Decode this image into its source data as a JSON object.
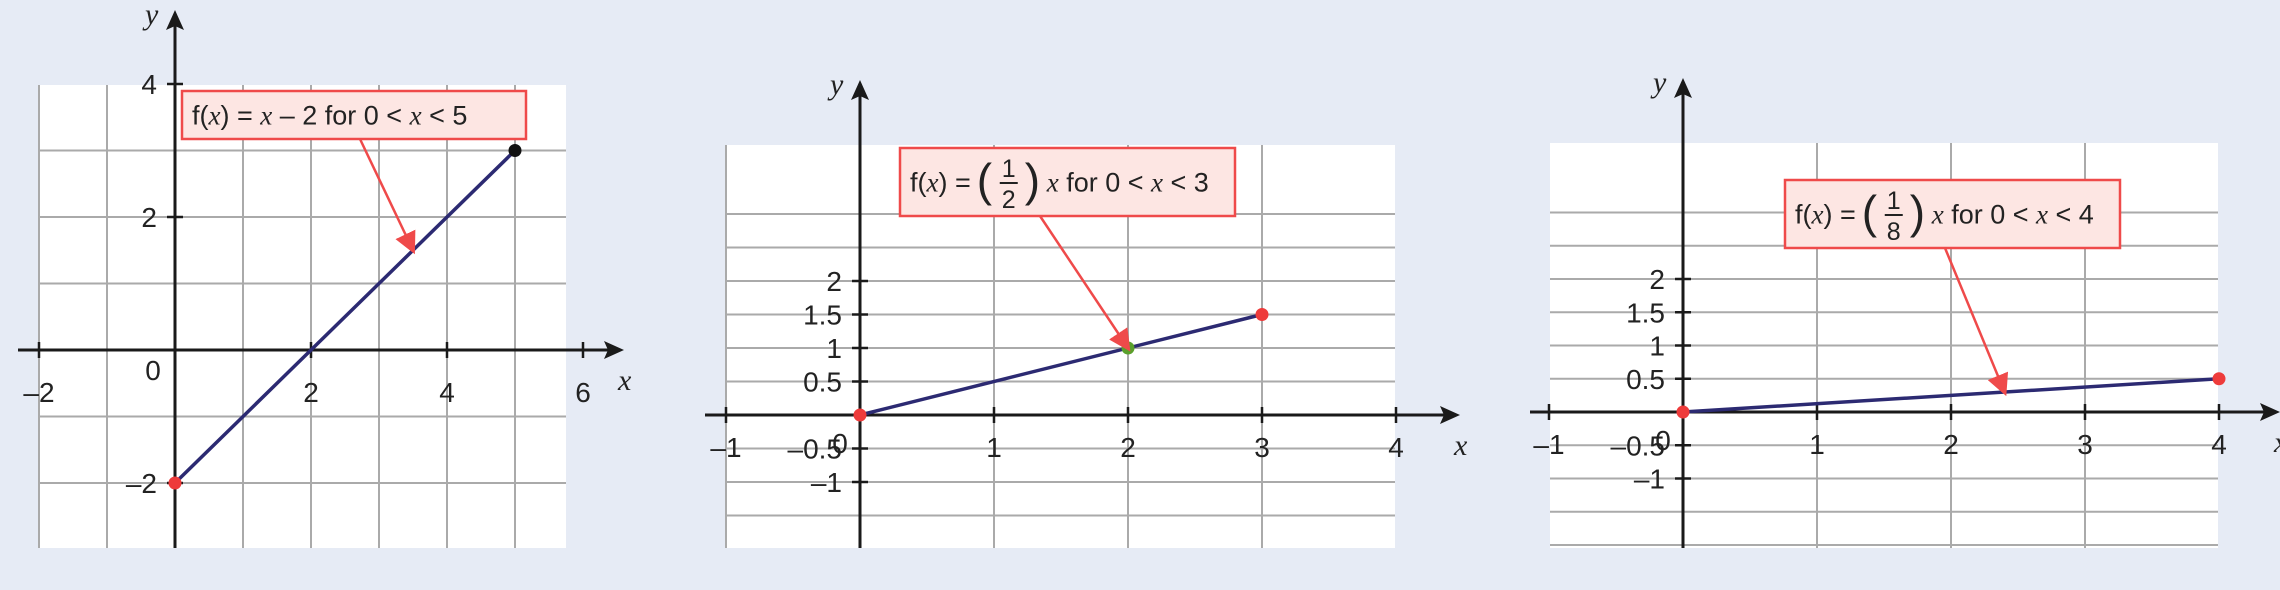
{
  "colors": {
    "background": "#e6ebf5",
    "plot_bg": "#ffffff",
    "grid": "#aaaaaa",
    "axis": "#1a1a1a",
    "line": "#2c2a72",
    "annotation_fill": "#fde6e3",
    "annotation_border": "#ef4a4a",
    "arrow": "#ef4a4a",
    "endpoint_red": "#ee3b3b",
    "endpoint_black": "#111111",
    "endpoint_green": "#5aa02c"
  },
  "chart_data": [
    {
      "type": "line",
      "xlabel": "x",
      "ylabel": "y",
      "origin_label": "0",
      "xlim": [
        -2,
        6
      ],
      "ylim": [
        -3,
        4
      ],
      "x_ticks": [
        -2,
        2,
        4,
        6
      ],
      "x_tick_labels": [
        "–2",
        "2",
        "4",
        "6"
      ],
      "y_ticks": [
        -2,
        2,
        4
      ],
      "y_tick_labels": [
        "–2",
        "2",
        "4"
      ],
      "grid": true,
      "series": [
        {
          "x": [
            0,
            5
          ],
          "y": [
            -2,
            3
          ]
        }
      ],
      "points": [
        {
          "x": 0,
          "y": -2,
          "color": "#ee3b3b"
        },
        {
          "x": 5,
          "y": 3,
          "color": "#111111"
        }
      ],
      "annotation": {
        "parts": [
          "f(",
          "x",
          ") = ",
          "x",
          " – 2 for 0 < ",
          "x",
          " < 5"
        ],
        "arrow_to": {
          "x": 3.5,
          "y": 1.5
        }
      }
    },
    {
      "type": "line",
      "xlabel": "x",
      "ylabel": "y",
      "origin_label": "0",
      "xlim": [
        -1,
        4
      ],
      "ylim": [
        -1,
        2
      ],
      "x_ticks": [
        -1,
        1,
        2,
        3,
        4
      ],
      "x_tick_labels": [
        "–1",
        "1",
        "2",
        "3",
        "4"
      ],
      "y_ticks": [
        -1,
        -0.5,
        0.5,
        1,
        1.5,
        2
      ],
      "y_tick_labels": [
        "–1",
        "–0.5",
        "0.5",
        "1",
        "1.5",
        "2"
      ],
      "grid": true,
      "series": [
        {
          "x": [
            0,
            3
          ],
          "y": [
            0,
            1.5
          ]
        }
      ],
      "points": [
        {
          "x": 0,
          "y": 0,
          "color": "#ee3b3b"
        },
        {
          "x": 3,
          "y": 1.5,
          "color": "#ee3b3b"
        },
        {
          "x": 2,
          "y": 1,
          "color": "#5aa02c"
        }
      ],
      "annotation": {
        "prefix": [
          "f(",
          "x",
          ") = "
        ],
        "fraction": {
          "numerator": "1",
          "denominator": "2"
        },
        "suffix": [
          "x",
          " for 0 < ",
          "x",
          " < 3"
        ],
        "arrow_to": {
          "x": 2,
          "y": 1
        }
      }
    },
    {
      "type": "line",
      "xlabel": "x",
      "ylabel": "y",
      "origin_label": "0",
      "xlim": [
        -1,
        4
      ],
      "ylim": [
        -1,
        2
      ],
      "x_ticks": [
        -1,
        1,
        2,
        3,
        4
      ],
      "x_tick_labels": [
        "–1",
        "1",
        "2",
        "3",
        "4"
      ],
      "y_ticks": [
        -1,
        -0.5,
        0.5,
        1,
        1.5,
        2
      ],
      "y_tick_labels": [
        "–1",
        "–0.5",
        "0.5",
        "1",
        "1.5",
        "2"
      ],
      "grid": true,
      "series": [
        {
          "x": [
            0,
            4
          ],
          "y": [
            0,
            0.5
          ]
        }
      ],
      "points": [
        {
          "x": 0,
          "y": 0,
          "color": "#ee3b3b"
        },
        {
          "x": 4,
          "y": 0.5,
          "color": "#ee3b3b"
        }
      ],
      "annotation": {
        "prefix": [
          "f(",
          "x",
          ") = "
        ],
        "fraction": {
          "numerator": "1",
          "denominator": "8"
        },
        "suffix": [
          "x",
          " for 0 < ",
          "x",
          " < 4"
        ],
        "arrow_to": {
          "x": 2.4,
          "y": 0.3
        }
      }
    }
  ]
}
